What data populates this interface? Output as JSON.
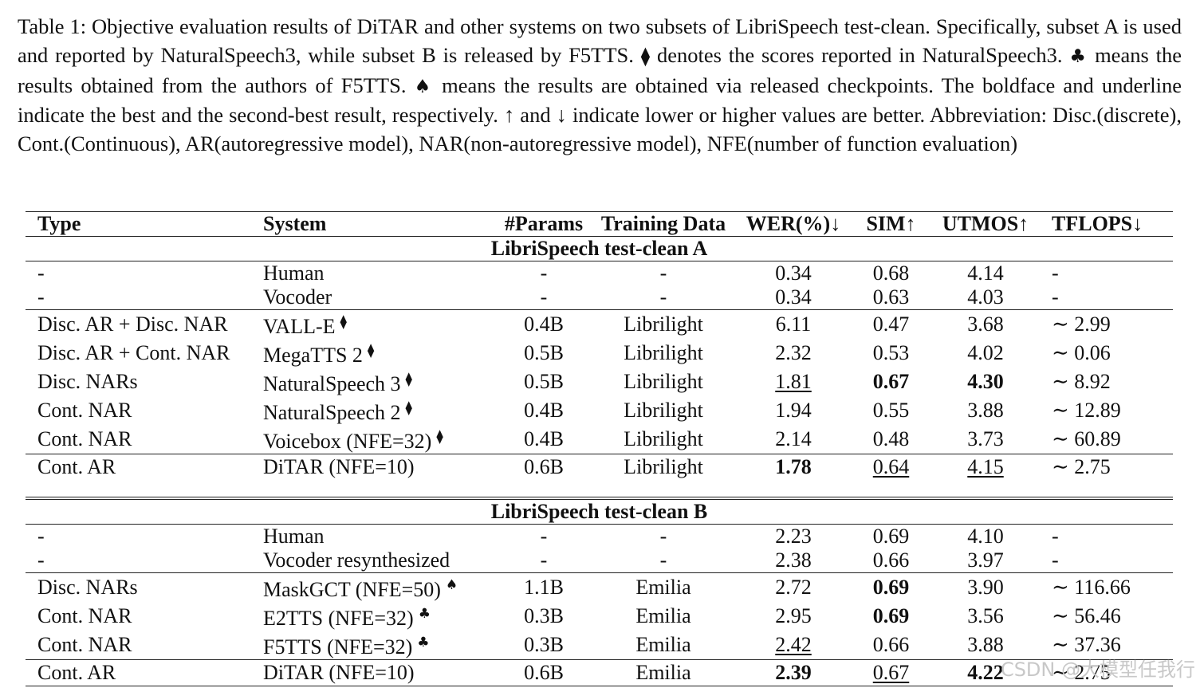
{
  "caption": {
    "p1": "Table 1: Objective evaluation results of DiTAR and other systems on two subsets of LibriSpeech test-clean. Specifically, subset A is used and reported by NaturalSpeech3, while subset B is released by F5TTS. ",
    "s1": "⧫",
    "p2": " denotes the scores reported in NaturalSpeech3. ",
    "s2": "♣",
    "p3": " means the results obtained from the authors of F5TTS. ",
    "s3": "♠",
    "p4": " means the results are obtained via released checkpoints. The boldface and underline indicate the best and the second-best result, respectively. ↑ and ↓ indicate lower or higher values are better. Abbreviation: Disc.(discrete), Cont.(Continuous), AR(autoregressive model), NAR(non-autoregressive model), NFE(number of function evaluation)"
  },
  "table": {
    "headers": [
      "Type",
      "System",
      "#Params",
      "Training Data",
      "WER(%)↓",
      "SIM↑",
      "UTMOS↑",
      "TFLOPS↓"
    ],
    "section_a": "LibriSpeech test-clean A",
    "section_b": "LibriSpeech test-clean B",
    "rows_a": [
      {
        "type": "-",
        "system": "Human",
        "mark": "",
        "params": "-",
        "data": "-",
        "wer": "0.34",
        "sim": "0.68",
        "utmos": "4.14",
        "tflops": "-"
      },
      {
        "type": "-",
        "system": "Vocoder",
        "mark": "",
        "params": "-",
        "data": "-",
        "wer": "0.34",
        "sim": "0.63",
        "utmos": "4.03",
        "tflops": "-"
      },
      {
        "type": "Disc. AR + Disc. NAR",
        "system": "VALL-E",
        "mark": "⧫",
        "params": "0.4B",
        "data": "Librilight",
        "wer": "6.11",
        "sim": "0.47",
        "utmos": "3.68",
        "tflops": "∼ 2.99"
      },
      {
        "type": "Disc. AR + Cont. NAR",
        "system": "MegaTTS 2",
        "mark": "⧫",
        "params": "0.5B",
        "data": "Librilight",
        "wer": "2.32",
        "sim": "0.53",
        "utmos": "4.02",
        "tflops": "∼ 0.06"
      },
      {
        "type": "Disc. NARs",
        "system": "NaturalSpeech 3",
        "mark": "⧫",
        "params": "0.5B",
        "data": "Librilight",
        "wer": "1.81",
        "sim": "0.67",
        "utmos": "4.30",
        "tflops": "∼ 8.92"
      },
      {
        "type": "Cont. NAR",
        "system": "NaturalSpeech 2",
        "mark": "⧫",
        "params": "0.4B",
        "data": "Librilight",
        "wer": "1.94",
        "sim": "0.55",
        "utmos": "3.88",
        "tflops": "∼ 12.89"
      },
      {
        "type": "Cont. NAR",
        "system": "Voicebox (NFE=32)",
        "mark": "⧫",
        "params": "0.4B",
        "data": "Librilight",
        "wer": "2.14",
        "sim": "0.48",
        "utmos": "3.73",
        "tflops": "∼ 60.89"
      },
      {
        "type": "Cont. AR",
        "system": "DiTAR (NFE=10)",
        "mark": "",
        "params": "0.6B",
        "data": "Librilight",
        "wer": "1.78",
        "sim": "0.64",
        "utmos": "4.15",
        "tflops": "∼ 2.75"
      }
    ],
    "rows_b": [
      {
        "type": "-",
        "system": "Human",
        "mark": "",
        "params": "-",
        "data": "-",
        "wer": "2.23",
        "sim": "0.69",
        "utmos": "4.10",
        "tflops": "-"
      },
      {
        "type": "-",
        "system": "Vocoder resynthesized",
        "mark": "",
        "params": "-",
        "data": "-",
        "wer": "2.38",
        "sim": "0.66",
        "utmos": "3.97",
        "tflops": "-"
      },
      {
        "type": "Disc. NARs",
        "system": "MaskGCT (NFE=50)",
        "mark": "♠",
        "params": "1.1B",
        "data": "Emilia",
        "wer": "2.72",
        "sim": "0.69",
        "utmos": "3.90",
        "tflops": "∼ 116.66"
      },
      {
        "type": "Cont. NAR",
        "system": "E2TTS (NFE=32)",
        "mark": "♣",
        "params": "0.3B",
        "data": "Emilia",
        "wer": "2.95",
        "sim": "0.69",
        "utmos": "3.56",
        "tflops": "∼ 56.46"
      },
      {
        "type": "Cont. NAR",
        "system": "F5TTS (NFE=32)",
        "mark": "♣",
        "params": "0.3B",
        "data": "Emilia",
        "wer": "2.42",
        "sim": "0.66",
        "utmos": "3.88",
        "tflops": "∼ 37.36"
      },
      {
        "type": "Cont. AR",
        "system": "DiTAR (NFE=10)",
        "mark": "",
        "params": "0.6B",
        "data": "Emilia",
        "wer": "2.39",
        "sim": "0.67",
        "utmos": "4.22",
        "tflops": "∼ 2.75"
      }
    ]
  },
  "watermark": "CSDN @大模型任我行"
}
